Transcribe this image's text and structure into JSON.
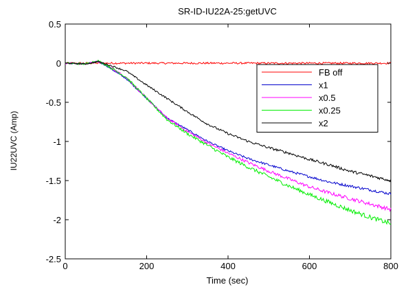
{
  "chart_data": {
    "type": "line",
    "title": "SR-ID-IU22A-25:getUVC",
    "xlabel": "Time (sec)",
    "ylabel": "IU22UVC (Amp)",
    "xlim": [
      0,
      800
    ],
    "ylim": [
      -2.5,
      0.5
    ],
    "xticks": [
      0,
      200,
      400,
      600,
      800
    ],
    "xtick_labels": [
      "0",
      "200",
      "400",
      "600",
      "800"
    ],
    "yticks": [
      0.5,
      0,
      -0.5,
      -1,
      -1.5,
      -2,
      -2.5
    ],
    "ytick_labels": [
      "0.5",
      "0",
      "-0.5",
      "-1",
      "-1.5",
      "-2",
      "-2.5"
    ],
    "grid": false,
    "legend_position": "top-right",
    "series": [
      {
        "name": "FB off",
        "color": "#ff0000",
        "x": [
          0,
          100,
          200,
          300,
          400,
          500,
          600,
          700,
          800
        ],
        "y": [
          0,
          0,
          0,
          0,
          0,
          0,
          0,
          0,
          0
        ]
      },
      {
        "name": "x1",
        "color": "#0000cc",
        "x": [
          0,
          50,
          80,
          100,
          150,
          200,
          250,
          300,
          350,
          400,
          450,
          500,
          550,
          600,
          650,
          700,
          750,
          800
        ],
        "y": [
          0,
          -0.01,
          0.02,
          -0.03,
          -0.2,
          -0.45,
          -0.7,
          -0.85,
          -1.0,
          -1.12,
          -1.22,
          -1.3,
          -1.38,
          -1.45,
          -1.52,
          -1.57,
          -1.62,
          -1.67
        ]
      },
      {
        "name": "x0.5",
        "color": "#ff00ff",
        "x": [
          0,
          50,
          80,
          100,
          150,
          200,
          250,
          300,
          350,
          400,
          450,
          500,
          550,
          600,
          650,
          700,
          750,
          800
        ],
        "y": [
          0,
          -0.01,
          0.02,
          -0.02,
          -0.18,
          -0.45,
          -0.7,
          -0.87,
          -1.02,
          -1.15,
          -1.27,
          -1.38,
          -1.48,
          -1.58,
          -1.66,
          -1.73,
          -1.8,
          -1.87
        ]
      },
      {
        "name": "x0.25",
        "color": "#00ee00",
        "x": [
          0,
          50,
          80,
          100,
          150,
          200,
          250,
          300,
          350,
          400,
          450,
          500,
          550,
          600,
          650,
          700,
          750,
          800
        ],
        "y": [
          0,
          -0.01,
          0.03,
          -0.02,
          -0.18,
          -0.45,
          -0.72,
          -0.9,
          -1.05,
          -1.2,
          -1.33,
          -1.45,
          -1.57,
          -1.68,
          -1.78,
          -1.88,
          -1.97,
          -2.05
        ]
      },
      {
        "name": "x2",
        "color": "#000000",
        "x": [
          0,
          50,
          80,
          100,
          150,
          200,
          250,
          300,
          350,
          400,
          450,
          500,
          550,
          600,
          650,
          700,
          750,
          800
        ],
        "y": [
          0,
          -0.01,
          0.02,
          -0.01,
          -0.1,
          -0.28,
          -0.45,
          -0.62,
          -0.78,
          -0.9,
          -1.0,
          -1.08,
          -1.15,
          -1.23,
          -1.3,
          -1.38,
          -1.44,
          -1.5
        ]
      }
    ]
  }
}
